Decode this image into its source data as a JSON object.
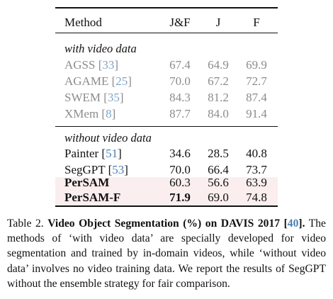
{
  "table": {
    "headers": [
      "Method",
      "J&F",
      "J",
      "F"
    ],
    "groups": [
      {
        "label": "with video data",
        "rows": [
          {
            "name": "AGSS",
            "cite": "33",
            "jf": "67.4",
            "j": "64.9",
            "f": "69.9"
          },
          {
            "name": "AGAME",
            "cite": "25",
            "jf": "70.0",
            "j": "67.2",
            "f": "72.7"
          },
          {
            "name": "SWEM",
            "cite": "35",
            "jf": "84.3",
            "j": "81.2",
            "f": "87.4"
          },
          {
            "name": "XMem",
            "cite": "8",
            "jf": "87.7",
            "j": "84.0",
            "f": "91.4"
          }
        ]
      },
      {
        "label": "without video data",
        "rows": [
          {
            "name": "Painter",
            "cite": "51",
            "jf": "34.6",
            "j": "28.5",
            "f": "40.8"
          },
          {
            "name": "SegGPT",
            "cite": "53",
            "jf": "70.0",
            "j": "66.4",
            "f": "73.7"
          },
          {
            "name": "PerSAM",
            "cite": "",
            "jf": "60.3",
            "j": "56.6",
            "f": "63.9"
          },
          {
            "name": "PerSAM-F",
            "cite": "",
            "jf": "71.9",
            "j": "69.0",
            "f": "74.8"
          }
        ]
      }
    ],
    "highlight_color": "#fbeeee",
    "gray_color": "#8c8c8c",
    "link_color": "#4a7fb3"
  },
  "caption": {
    "prefix": "Table 2. ",
    "bold_title": "Video Object Segmentation (%) on DAVIS 2017 [",
    "bold_cite": "40",
    "bold_close": "].",
    "body": " The methods of ‘with video data’ are specially developed for video segmentation and trained by in-domain videos, while ‘without video data’ involves no video training data. We report the results of SegGPT without the ensemble strategy for fair comparison."
  }
}
